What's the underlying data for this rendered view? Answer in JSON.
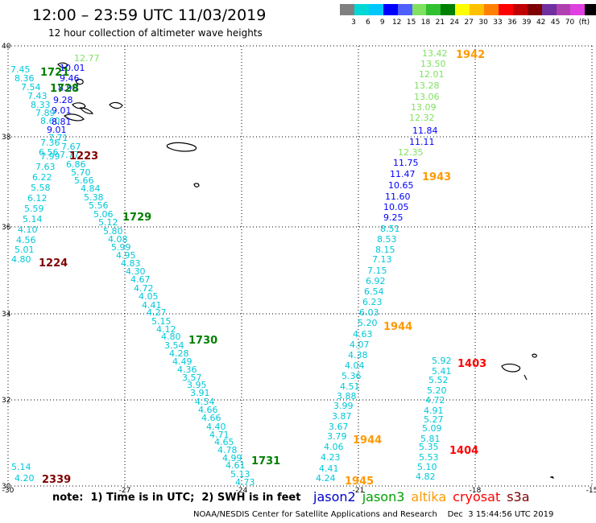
{
  "header": {
    "title": "12:00 – 23:59 UTC 11/03/2019",
    "subtitle": "12 hour collection of altimeter wave heights"
  },
  "color_scale": {
    "colors": [
      "#808080",
      "#00d8d8",
      "#00c8ff",
      "#0000ff",
      "#5060ff",
      "#80e060",
      "#30c030",
      "#008000",
      "#ffff00",
      "#ffc000",
      "#ff8000",
      "#ff0000",
      "#c00000",
      "#800000",
      "#7030a0",
      "#b040b0",
      "#e040e0",
      "#000000"
    ],
    "labels": [
      "3",
      "6",
      "9",
      "12",
      "15",
      "18",
      "21",
      "24",
      "27",
      "30",
      "33",
      "36",
      "39",
      "42",
      "45",
      "70",
      "(ft)"
    ]
  },
  "map": {
    "lon_labels": [
      "-30",
      "-27",
      "-24",
      "-21",
      "-18",
      "-15"
    ],
    "lat_labels": [
      "40",
      "38",
      "36",
      "34",
      "32",
      "30"
    ],
    "readings": [
      {
        "t": "12.77",
        "c": "#80e060"
      },
      {
        "t": "7.45",
        "c": "#00c8d8"
      },
      {
        "t": "10.01",
        "c": "#0000ff"
      },
      {
        "t": "8.36",
        "c": "#00c8d8"
      },
      {
        "t": "9.46",
        "c": "#0000ff"
      },
      {
        "t": "7.54",
        "c": "#00c8d8"
      },
      {
        "t": "8.90",
        "c": "#0000ff"
      },
      {
        "t": "7.43",
        "c": "#00c8d8"
      },
      {
        "t": "9.28",
        "c": "#0000ff"
      },
      {
        "t": "8.33",
        "c": "#00c8d8"
      },
      {
        "t": "9.01",
        "c": "#0000ff"
      },
      {
        "t": "7.89",
        "c": "#00c8d8"
      },
      {
        "t": "8.60",
        "c": "#00c8d8"
      },
      {
        "t": "8.81",
        "c": "#0000ff"
      },
      {
        "t": "9.01",
        "c": "#0000ff"
      },
      {
        "t": "7.71",
        "c": "#00c8d8"
      },
      {
        "t": "7.36",
        "c": "#00c8d8"
      },
      {
        "t": "7.67",
        "c": "#00c8d8"
      },
      {
        "t": "6.56",
        "c": "#00c8d8"
      },
      {
        "t": "7.99",
        "c": "#00c8d8"
      },
      {
        "t": "7.77",
        "c": "#00c8d8"
      },
      {
        "t": "6.86",
        "c": "#00c8d8"
      },
      {
        "t": "7.63",
        "c": "#00c8d8"
      },
      {
        "t": "5.70",
        "c": "#00c8d8"
      },
      {
        "t": "6.22",
        "c": "#00c8d8"
      },
      {
        "t": "5.66",
        "c": "#00c8d8"
      },
      {
        "t": "5.58",
        "c": "#00c8d8"
      },
      {
        "t": "4.84",
        "c": "#00c8d8"
      },
      {
        "t": "5.38",
        "c": "#00c8d8"
      },
      {
        "t": "6.12",
        "c": "#00c8d8"
      },
      {
        "t": "5.56",
        "c": "#00c8d8"
      },
      {
        "t": "5.59",
        "c": "#00c8d8"
      },
      {
        "t": "5.06",
        "c": "#00c8d8"
      },
      {
        "t": "5.14",
        "c": "#00c8d8"
      },
      {
        "t": "5.12",
        "c": "#00c8d8"
      },
      {
        "t": "4.10",
        "c": "#00c8d8"
      },
      {
        "t": "5.80",
        "c": "#00c8d8"
      },
      {
        "t": "4.56",
        "c": "#00c8d8"
      },
      {
        "t": "4.08",
        "c": "#00c8d8"
      },
      {
        "t": "5.01",
        "c": "#00c8d8"
      },
      {
        "t": "5.99",
        "c": "#00c8d8"
      },
      {
        "t": "4.95",
        "c": "#00c8d8"
      },
      {
        "t": "4.80",
        "c": "#00c8d8"
      },
      {
        "t": "4.83",
        "c": "#00c8d8"
      },
      {
        "t": "4.30",
        "c": "#00c8d8"
      },
      {
        "t": "4.67",
        "c": "#00c8d8"
      },
      {
        "t": "4.72",
        "c": "#00c8d8"
      },
      {
        "t": "4.05",
        "c": "#00c8d8"
      },
      {
        "t": "4.41",
        "c": "#00c8d8"
      },
      {
        "t": "4.27",
        "c": "#00c8d8"
      },
      {
        "t": "5.15",
        "c": "#00c8d8"
      },
      {
        "t": "4.12",
        "c": "#00c8d8"
      },
      {
        "t": "4.80",
        "c": "#00c8d8"
      },
      {
        "t": "3.54",
        "c": "#00c8d8"
      },
      {
        "t": "4.28",
        "c": "#00c8d8"
      },
      {
        "t": "4.49",
        "c": "#00c8d8"
      },
      {
        "t": "4.36",
        "c": "#00c8d8"
      },
      {
        "t": "3.57",
        "c": "#00c8d8"
      },
      {
        "t": "3.95",
        "c": "#00c8d8"
      },
      {
        "t": "3.91",
        "c": "#00c8d8"
      },
      {
        "t": "4.54",
        "c": "#00c8d8"
      },
      {
        "t": "4.66",
        "c": "#00c8d8"
      },
      {
        "t": "4.66",
        "c": "#00c8d8"
      },
      {
        "t": "4.40",
        "c": "#00c8d8"
      },
      {
        "t": "4.71",
        "c": "#00c8d8"
      },
      {
        "t": "4.65",
        "c": "#00c8d8"
      },
      {
        "t": "4.78",
        "c": "#00c8d8"
      },
      {
        "t": "4.99",
        "c": "#00c8d8"
      },
      {
        "t": "4.61",
        "c": "#00c8d8"
      },
      {
        "t": "5.13",
        "c": "#00c8d8"
      },
      {
        "t": "4.73",
        "c": "#00c8d8"
      },
      {
        "t": "5.14",
        "c": "#00c8d8"
      },
      {
        "t": "4.20",
        "c": "#00c8d8"
      },
      {
        "t": "13.42",
        "c": "#80e060"
      },
      {
        "t": "13.50",
        "c": "#80e060"
      },
      {
        "t": "12.01",
        "c": "#80e060"
      },
      {
        "t": "13.28",
        "c": "#80e060"
      },
      {
        "t": "13.06",
        "c": "#80e060"
      },
      {
        "t": "13.09",
        "c": "#80e060"
      },
      {
        "t": "12.32",
        "c": "#80e060"
      },
      {
        "t": "11.84",
        "c": "#0000ff"
      },
      {
        "t": "11.11",
        "c": "#0000ff"
      },
      {
        "t": "12.35",
        "c": "#80e060"
      },
      {
        "t": "11.75",
        "c": "#0000ff"
      },
      {
        "t": "11.47",
        "c": "#0000ff"
      },
      {
        "t": "10.65",
        "c": "#0000ff"
      },
      {
        "t": "11.60",
        "c": "#0000ff"
      },
      {
        "t": "10.05",
        "c": "#0000ff"
      },
      {
        "t": "9.25",
        "c": "#0000ff"
      },
      {
        "t": "8.51",
        "c": "#00c8d8"
      },
      {
        "t": "8.53",
        "c": "#00c8d8"
      },
      {
        "t": "8.15",
        "c": "#00c8d8"
      },
      {
        "t": "7.13",
        "c": "#00c8d8"
      },
      {
        "t": "7.15",
        "c": "#00c8d8"
      },
      {
        "t": "6.92",
        "c": "#00c8d8"
      },
      {
        "t": "6.54",
        "c": "#00c8d8"
      },
      {
        "t": "6.23",
        "c": "#00c8d8"
      },
      {
        "t": "6.03",
        "c": "#00c8d8"
      },
      {
        "t": "5.20",
        "c": "#00c8d8"
      },
      {
        "t": "4.63",
        "c": "#00c8d8"
      },
      {
        "t": "4.07",
        "c": "#00c8d8"
      },
      {
        "t": "4.38",
        "c": "#00c8d8"
      },
      {
        "t": "4.04",
        "c": "#00c8d8"
      },
      {
        "t": "5.36",
        "c": "#00c8d8"
      },
      {
        "t": "4.51",
        "c": "#00c8d8"
      },
      {
        "t": "3.88",
        "c": "#00c8d8"
      },
      {
        "t": "3.99",
        "c": "#00c8d8"
      },
      {
        "t": "3.87",
        "c": "#00c8d8"
      },
      {
        "t": "3.67",
        "c": "#00c8d8"
      },
      {
        "t": "3.79",
        "c": "#00c8d8"
      },
      {
        "t": "4.06",
        "c": "#00c8d8"
      },
      {
        "t": "4.23",
        "c": "#00c8d8"
      },
      {
        "t": "4.41",
        "c": "#00c8d8"
      },
      {
        "t": "4.24",
        "c": "#00c8d8"
      },
      {
        "t": "5.92",
        "c": "#00c8d8"
      },
      {
        "t": "5.41",
        "c": "#00c8d8"
      },
      {
        "t": "5.52",
        "c": "#00c8d8"
      },
      {
        "t": "5.20",
        "c": "#00c8d8"
      },
      {
        "t": "4.72",
        "c": "#00c8d8"
      },
      {
        "t": "4.91",
        "c": "#00c8d8"
      },
      {
        "t": "5.27",
        "c": "#00c8d8"
      },
      {
        "t": "5.09",
        "c": "#00c8d8"
      },
      {
        "t": "5.81",
        "c": "#00c8d8"
      },
      {
        "t": "5.35",
        "c": "#00c8d8"
      },
      {
        "t": "5.53",
        "c": "#00c8d8"
      },
      {
        "t": "5.10",
        "c": "#00c8d8"
      },
      {
        "t": "4.82",
        "c": "#00c8d8"
      }
    ],
    "pass_times": [
      {
        "t": "1942",
        "c": "#ff9900"
      },
      {
        "t": "1721",
        "c": "#008000"
      },
      {
        "t": "1728",
        "c": "#008000"
      },
      {
        "t": "1223",
        "c": "#800000"
      },
      {
        "t": "1943",
        "c": "#ff9900"
      },
      {
        "t": "1729",
        "c": "#008000"
      },
      {
        "t": "1224",
        "c": "#800000"
      },
      {
        "t": "1944",
        "c": "#ff9900"
      },
      {
        "t": "1730",
        "c": "#008000"
      },
      {
        "t": "1403",
        "c": "#ff0000"
      },
      {
        "t": "1944",
        "c": "#ff9900"
      },
      {
        "t": "1404",
        "c": "#ff0000"
      },
      {
        "t": "1731",
        "c": "#008000"
      },
      {
        "t": "2339",
        "c": "#800000"
      },
      {
        "t": "1945",
        "c": "#ff9900"
      }
    ]
  },
  "note": "note:  1) Time is in UTC;  2) SWH is in feet",
  "legend": [
    {
      "label": "jason2",
      "color": "#0000cc"
    },
    {
      "label": "jason3",
      "color": "#00a000"
    },
    {
      "label": "altika",
      "color": "#ff9900"
    },
    {
      "label": "cryosat",
      "color": "#ff0000"
    },
    {
      "label": "s3a",
      "color": "#800000"
    }
  ],
  "footer": "NOAA/NESDIS Center for Satellite Applications and Research    Dec  3 15:44:56 UTC 2019"
}
